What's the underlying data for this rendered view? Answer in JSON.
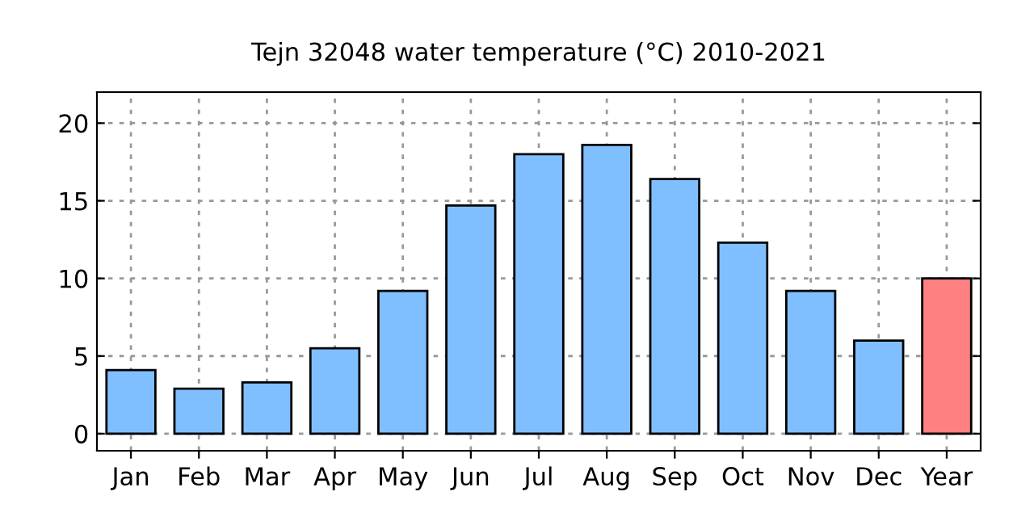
{
  "chart_data": {
    "type": "bar",
    "title": "Tejn 32048 water temperature (°C) 2010-2021",
    "categories": [
      "Jan",
      "Feb",
      "Mar",
      "Apr",
      "May",
      "Jun",
      "Jul",
      "Aug",
      "Sep",
      "Oct",
      "Nov",
      "Dec",
      "Year"
    ],
    "values": [
      4.1,
      2.9,
      3.3,
      5.5,
      9.2,
      14.7,
      18.0,
      18.6,
      16.4,
      12.3,
      9.2,
      6.0,
      10.0
    ],
    "colors": [
      "#80bfff",
      "#80bfff",
      "#80bfff",
      "#80bfff",
      "#80bfff",
      "#80bfff",
      "#80bfff",
      "#80bfff",
      "#80bfff",
      "#80bfff",
      "#80bfff",
      "#80bfff",
      "#ff8080"
    ],
    "ylim": [
      -1.1,
      22
    ],
    "yticks": [
      0,
      5,
      10,
      15,
      20
    ],
    "grid": true
  }
}
